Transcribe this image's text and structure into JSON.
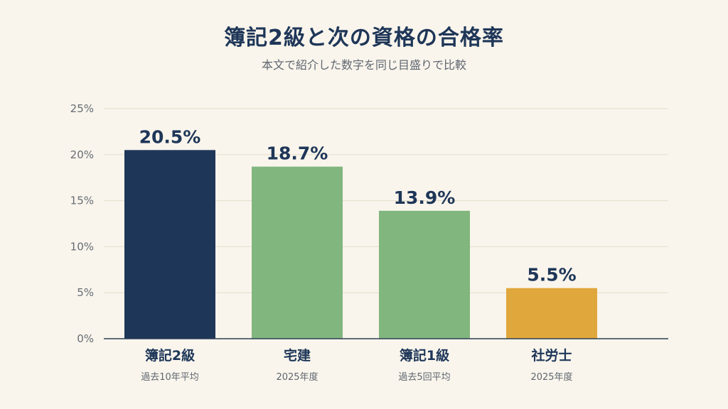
{
  "chart_data": {
    "type": "bar",
    "title": "簿記2級と次の資格の合格率",
    "subtitle": "本文で紹介した数字を同じ目盛りで比較",
    "categories": [
      "簿記2級",
      "宅建",
      "簿記1級",
      "社労士"
    ],
    "category_notes": [
      "過去10年平均",
      "2025年度",
      "過去5回平均",
      "2025年度"
    ],
    "values": [
      20.5,
      18.7,
      13.9,
      5.5
    ],
    "value_labels": [
      "20.5%",
      "18.7%",
      "13.9%",
      "5.5%"
    ],
    "colors": [
      "#1e3658",
      "#82b67f",
      "#82b67f",
      "#e0a73c"
    ],
    "ylim": [
      0,
      25
    ],
    "yticks": [
      0,
      5,
      10,
      15,
      20,
      25
    ],
    "ytick_labels": [
      "0%",
      "5%",
      "10%",
      "15%",
      "20%",
      "25%"
    ],
    "grid": true,
    "xlabel": "",
    "ylabel": ""
  }
}
